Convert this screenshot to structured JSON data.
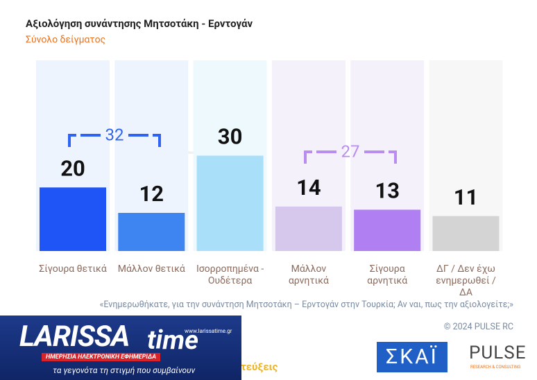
{
  "chart_data": {
    "type": "bar",
    "title": "Αξιολόγηση συνάντησης Μητσοτάκη - Ερντογάν",
    "subtitle": "Σύνολο δείγματος",
    "categories": [
      "Σίγουρα θετικά",
      "Μάλλον θετικά",
      "Ισορροπημένα - Ουδέτερα",
      "Μάλλον αρνητικά",
      "Σίγουρα αρνητικά",
      "ΔΓ / Δεν έχω ενημερωθεί / ΔΑ"
    ],
    "values": [
      20,
      12,
      30,
      14,
      13,
      11
    ],
    "colors": [
      "#1f55f6",
      "#3f85f1",
      "#a9dff8",
      "#d5c8ec",
      "#b07ff1",
      "#d4d4d4"
    ],
    "band_colors": [
      "#eef4fd",
      "#eef4fd",
      "#eef9fe",
      "#f4f1fb",
      "#f4f1fb",
      "#f7f7f7"
    ],
    "ylim": [
      0,
      60
    ],
    "annotations": [
      {
        "text": "32",
        "color": "#2f63f2"
      },
      {
        "text": "27",
        "color": "#b98cf0"
      }
    ],
    "watermark": "PULSE",
    "watermark_sub": "RESEARCH & CONSULTING",
    "note": "«Ενημερωθήκατε, για την συνάντηση Μητσοτάκη – Ερντογάν στην Τουρκία; Αν ναι, πως την αξιολογείτε;»",
    "source": "© 2024 PULSE RC"
  },
  "overlay": {
    "larissa_brand": "LARISSA",
    "larissa_time": "time",
    "larissa_url": "www.larissatime.gr",
    "larissa_tag": "ΗΜΕΡΗΣΙΑ ΗΛΕΚΤΡΟΝΙΚΗ ΕΦΗΜΕΡΙΔΑ",
    "larissa_slogan": "τα γεγονότα τη στιγμή που συμβαίνουν",
    "partial_text": "τεύξεις",
    "skai_logo": "ΣΚΑΪ",
    "pulse_logo": "PULSE",
    "pulse_sub": "RESEARCH & CONSULTING"
  }
}
